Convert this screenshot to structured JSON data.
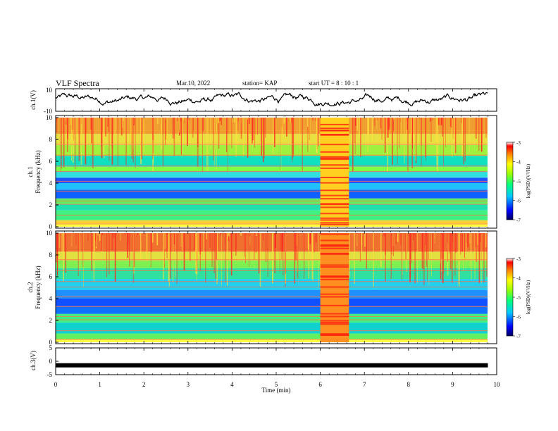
{
  "header": {
    "title": "VLF Spectra",
    "date": "Mar.10, 2022",
    "station": "station= KAP",
    "start_ut": "start  UT  =  8 : 10 : 1"
  },
  "chart_data": [
    {
      "type": "line",
      "panel": "ch1-waveform",
      "ylabel": "ch.1(V)",
      "ylim": [
        -10,
        10
      ],
      "yticklabels": [
        "10",
        "-10"
      ],
      "xlim": [
        0,
        10
      ],
      "description_series": "noisy waveform, amplitude mostly between about -4 and 6 V",
      "color": "#000000"
    },
    {
      "type": "heatmap",
      "panel": "ch1-spectrogram",
      "ylabel": "ch.1\nFrequency (kHz)",
      "ylim": [
        0,
        10
      ],
      "yticks": [
        0,
        2,
        4,
        6,
        8,
        10
      ],
      "xlim": [
        0,
        10
      ],
      "data_extent_min": 9.8,
      "colorbar": {
        "label": "log(PSD)(V²/Hz)",
        "range": [
          -7,
          -3
        ],
        "ticks": [
          -3,
          -4,
          -5,
          -6,
          -7
        ]
      },
      "bands": [
        {
          "from": 0,
          "to": 0.3,
          "color": "#ffff40"
        },
        {
          "from": 0.3,
          "to": 0.6,
          "color": "#ffd030"
        },
        {
          "from": 0.6,
          "to": 1.5,
          "color": "#40f080"
        },
        {
          "from": 1.5,
          "to": 2.1,
          "color": "#20e0b0"
        },
        {
          "from": 2.1,
          "to": 2.6,
          "color": "#60f060"
        },
        {
          "from": 2.6,
          "to": 3.4,
          "color": "#1060ff"
        },
        {
          "from": 3.4,
          "to": 4.0,
          "color": "#20c0ff"
        },
        {
          "from": 4.0,
          "to": 4.5,
          "color": "#2050ff"
        },
        {
          "from": 4.5,
          "to": 5.1,
          "color": "#30e0e0"
        },
        {
          "from": 5.1,
          "to": 5.5,
          "color": "#80ff40"
        },
        {
          "from": 5.5,
          "to": 6.5,
          "color": "#10e0c0"
        },
        {
          "from": 6.5,
          "to": 7.5,
          "color": "#a0f040"
        },
        {
          "from": 7.5,
          "to": 8.5,
          "color": "#e8e040"
        },
        {
          "from": 8.5,
          "to": 10,
          "color": "#f0a030"
        }
      ],
      "burst": {
        "t_start": 6.0,
        "t_end": 6.65,
        "color": "#ffd020"
      }
    },
    {
      "type": "heatmap",
      "panel": "ch2-spectrogram",
      "ylabel": "ch.2\nFrequency (kHz)",
      "ylim": [
        0,
        10
      ],
      "yticks": [
        0,
        2,
        4,
        6,
        8,
        10
      ],
      "xlim": [
        0,
        10
      ],
      "data_extent_min": 9.8,
      "colorbar": {
        "label": "log(PSD)(V²/Hz)",
        "range": [
          -7,
          -3
        ],
        "ticks": [
          -3,
          -4,
          -5,
          -6,
          -7
        ]
      },
      "bands": [
        {
          "from": 0,
          "to": 0.3,
          "color": "#ffff40"
        },
        {
          "from": 0.3,
          "to": 0.8,
          "color": "#60f060"
        },
        {
          "from": 0.8,
          "to": 1.8,
          "color": "#10d0d0"
        },
        {
          "from": 1.8,
          "to": 2.6,
          "color": "#40f080"
        },
        {
          "from": 2.6,
          "to": 3.3,
          "color": "#1070ff"
        },
        {
          "from": 3.3,
          "to": 4.0,
          "color": "#1050ff"
        },
        {
          "from": 4.0,
          "to": 4.8,
          "color": "#2090ff"
        },
        {
          "from": 4.8,
          "to": 5.8,
          "color": "#20d0f0"
        },
        {
          "from": 5.8,
          "to": 6.8,
          "color": "#30e0a0"
        },
        {
          "from": 6.8,
          "to": 7.5,
          "color": "#80f050"
        },
        {
          "from": 7.5,
          "to": 8.3,
          "color": "#e0e040"
        },
        {
          "from": 8.3,
          "to": 10,
          "color": "#f07030"
        }
      ],
      "burst": {
        "t_start": 6.0,
        "t_end": 6.65,
        "color": "#ff9020"
      }
    },
    {
      "type": "line",
      "panel": "ch3-waveform",
      "ylabel": "ch.3(V)",
      "ylim": [
        -5,
        5
      ],
      "yticks": [
        -5,
        0,
        5
      ],
      "xlim": [
        0,
        10
      ],
      "line_value": -1.5,
      "line_until_min": 9.8,
      "color": "#000000"
    }
  ],
  "xaxis": {
    "label": "Time (min)",
    "ticks": [
      0,
      1,
      2,
      3,
      4,
      5,
      6,
      7,
      8,
      9,
      10
    ]
  },
  "colors": {
    "colormap": [
      "#000080",
      "#0000ff",
      "#00c0ff",
      "#00ff80",
      "#80ff00",
      "#ffff00",
      "#ff8000",
      "#ff0000",
      "#ffffff"
    ]
  }
}
